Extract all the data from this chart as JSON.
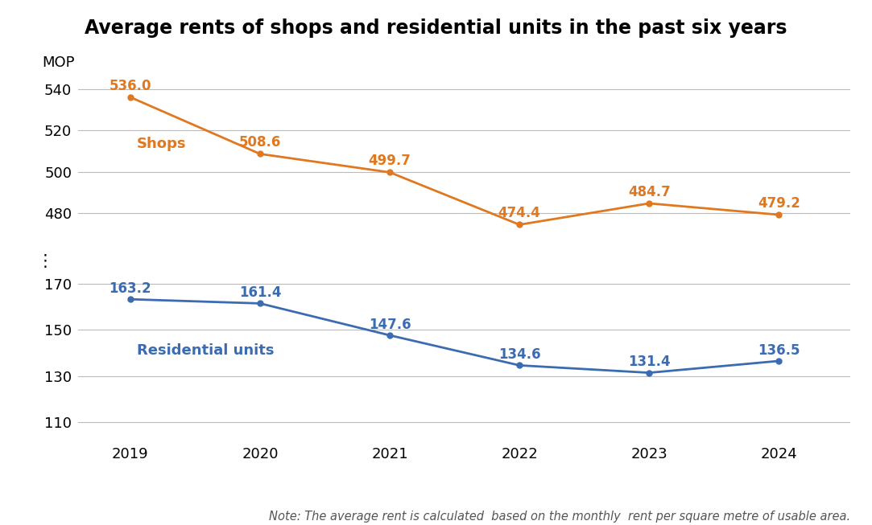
{
  "title": "Average rents of shops and residential units in the past six years",
  "ylabel": "MOP",
  "note": "Note: The average rent is calculated  based on the monthly  rent per square metre of usable area.",
  "years": [
    2019,
    2020,
    2021,
    2022,
    2023,
    2024
  ],
  "shops": [
    536.0,
    508.6,
    499.7,
    474.4,
    484.7,
    479.2
  ],
  "residential": [
    163.2,
    161.4,
    147.6,
    134.6,
    131.4,
    136.5
  ],
  "shops_color": "#E07820",
  "residential_color": "#3B6BB0",
  "shops_label": "Shops",
  "residential_label": "Residential units",
  "upper_yticks": [
    480,
    500,
    520,
    540
  ],
  "lower_yticks": [
    110,
    130,
    150,
    170
  ],
  "background_color": "#ffffff",
  "grid_color": "#bbbbbb",
  "title_fontsize": 17,
  "label_fontsize": 13,
  "note_fontsize": 10.5,
  "tick_fontsize": 13,
  "data_fontsize": 12
}
